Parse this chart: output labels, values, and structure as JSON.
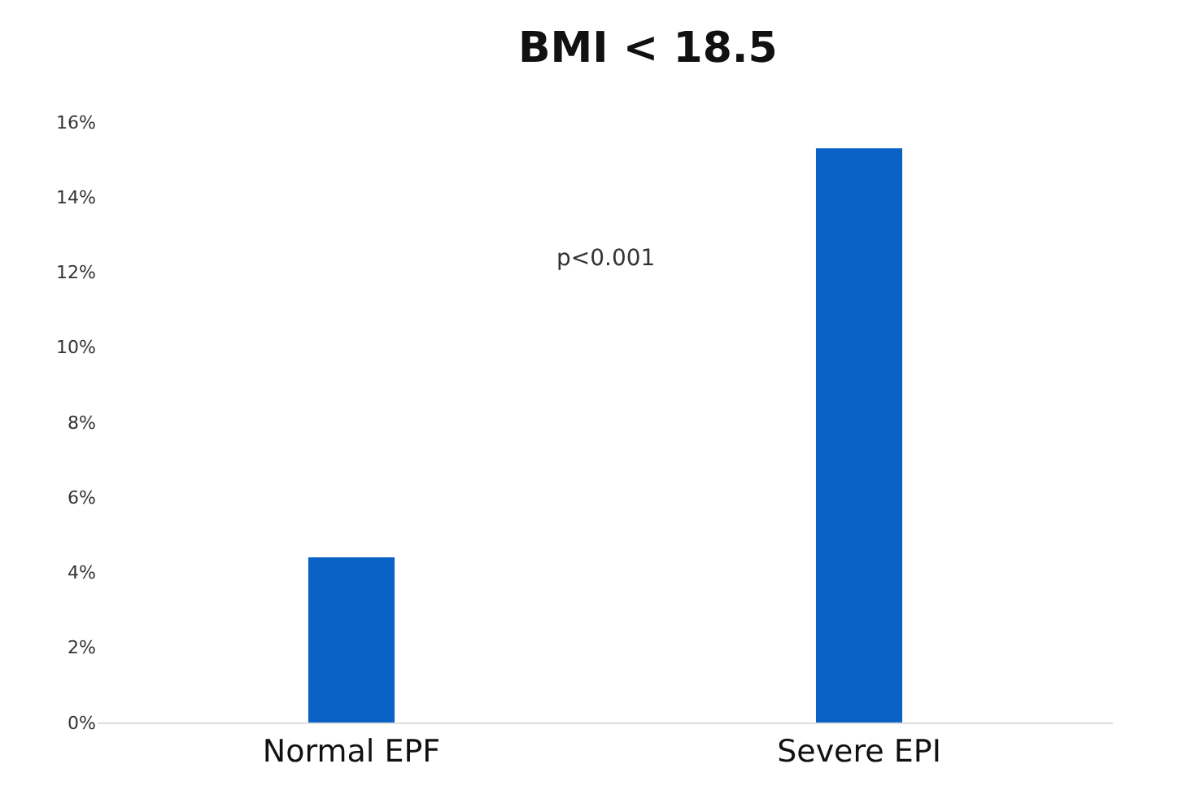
{
  "chart_data": {
    "type": "bar",
    "title": "BMI < 18.5",
    "categories": [
      "Normal EPF",
      "Severe EPI"
    ],
    "series": [
      {
        "color": "#0b62c6",
        "values": [
          4.4,
          15.3
        ]
      }
    ],
    "ylim": [
      0,
      16
    ],
    "yticks": [
      {
        "value": 0,
        "label": "0%"
      },
      {
        "value": 2,
        "label": "2%"
      },
      {
        "value": 4,
        "label": "4%"
      },
      {
        "value": 6,
        "label": "6%"
      },
      {
        "value": 8,
        "label": "8%"
      },
      {
        "value": 10,
        "label": "10%"
      },
      {
        "value": 12,
        "label": "12%"
      },
      {
        "value": 14,
        "label": "14%"
      },
      {
        "value": 16,
        "label": "16%"
      }
    ],
    "annotations": [
      "p<0.001"
    ],
    "grid": false
  }
}
